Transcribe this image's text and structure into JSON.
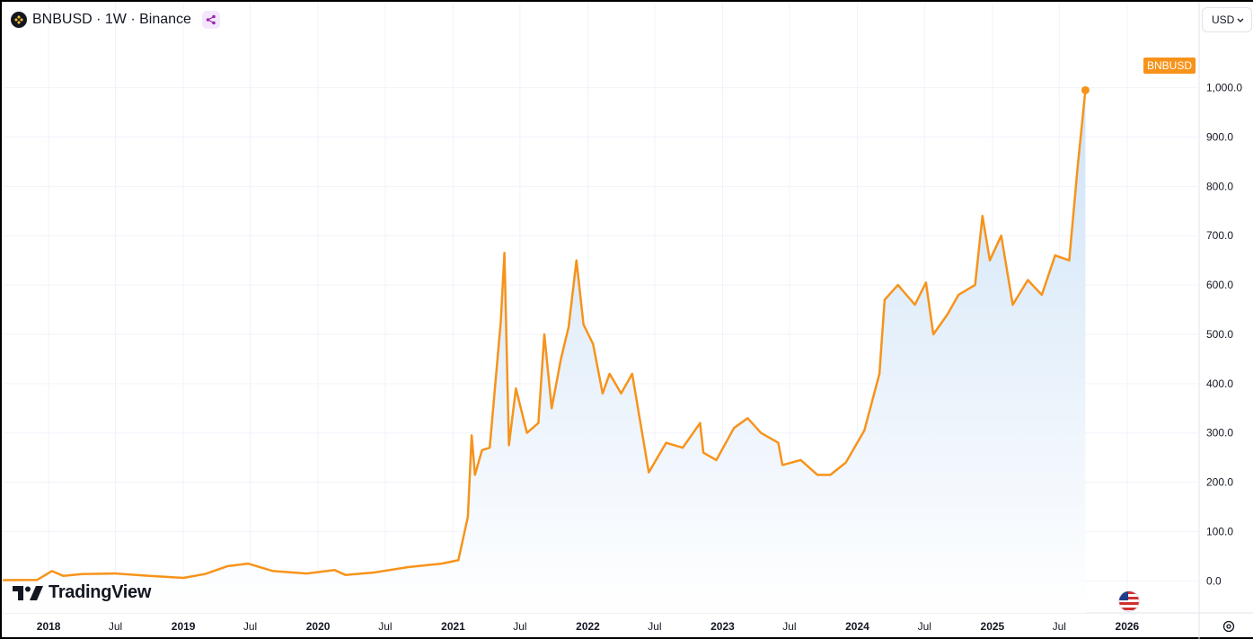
{
  "header": {
    "title": "BNBUSD · 1W · Binance"
  },
  "currency": {
    "label": "USD"
  },
  "brand": {
    "name": "TradingView"
  },
  "colors": {
    "line": "#f7931a",
    "area_top": "#cfe3f7",
    "area_bottom": "#ffffff",
    "grid": "#f0f3fa",
    "text": "#131722"
  },
  "chart_data": {
    "type": "area",
    "series": [
      {
        "name": "BNBUSD",
        "x": [
          "2017-09-01",
          "2017-12-01",
          "2018-01-10",
          "2018-02-10",
          "2018-04-01",
          "2018-07-01",
          "2018-10-01",
          "2019-01-01",
          "2019-03-01",
          "2019-05-01",
          "2019-06-25",
          "2019-09-01",
          "2019-12-01",
          "2020-02-15",
          "2020-03-15",
          "2020-06-01",
          "2020-09-01",
          "2020-12-01",
          "2021-01-15",
          "2021-02-10",
          "2021-02-20",
          "2021-03-01",
          "2021-03-20",
          "2021-04-10",
          "2021-05-10",
          "2021-05-20",
          "2021-06-01",
          "2021-06-20",
          "2021-07-20",
          "2021-08-20",
          "2021-09-05",
          "2021-09-25",
          "2021-10-20",
          "2021-11-10",
          "2021-12-01",
          "2021-12-20",
          "2022-01-15",
          "2022-02-10",
          "2022-03-01",
          "2022-04-01",
          "2022-05-01",
          "2022-06-15",
          "2022-08-01",
          "2022-09-15",
          "2022-11-01",
          "2022-11-10",
          "2022-12-15",
          "2023-02-01",
          "2023-03-10",
          "2023-04-15",
          "2023-06-01",
          "2023-06-12",
          "2023-08-01",
          "2023-09-15",
          "2023-10-20",
          "2023-12-01",
          "2024-01-20",
          "2024-03-01",
          "2024-03-15",
          "2024-04-20",
          "2024-06-05",
          "2024-07-05",
          "2024-07-25",
          "2024-09-01",
          "2024-10-01",
          "2024-11-15",
          "2024-12-05",
          "2024-12-25",
          "2025-01-25",
          "2025-02-25",
          "2025-04-07",
          "2025-05-15",
          "2025-06-20",
          "2025-07-28",
          "2025-08-20",
          "2025-09-10"
        ],
        "y": [
          1.5,
          2,
          20,
          10,
          14,
          15,
          10,
          6,
          14,
          30,
          35,
          20,
          15,
          22,
          12,
          17,
          28,
          35,
          42,
          130,
          295,
          215,
          265,
          270,
          525,
          665,
          275,
          390,
          300,
          320,
          500,
          350,
          450,
          515,
          650,
          520,
          480,
          380,
          420,
          380,
          420,
          220,
          280,
          270,
          320,
          260,
          245,
          310,
          330,
          300,
          280,
          235,
          245,
          215,
          215,
          240,
          305,
          420,
          570,
          600,
          560,
          605,
          500,
          540,
          580,
          600,
          740,
          650,
          700,
          560,
          610,
          580,
          660,
          650,
          840,
          995
        ]
      }
    ],
    "x_ticks": [
      "2018",
      "Jul",
      "2019",
      "Jul",
      "2020",
      "Jul",
      "2021",
      "Jul",
      "2022",
      "Jul",
      "2023",
      "Jul",
      "2024",
      "Jul",
      "2025",
      "Jul",
      "2026"
    ],
    "y_ticks": [
      "0.0",
      "100.0",
      "200.0",
      "300.0",
      "400.0",
      "500.0",
      "600.0",
      "700.0",
      "800.0",
      "900.0",
      "1,000.0"
    ],
    "ylim": [
      -65,
      1105
    ],
    "xlim": [
      "2017-09-01",
      "2026-07-15"
    ],
    "last_label": "BNBUSD",
    "grid": true
  }
}
